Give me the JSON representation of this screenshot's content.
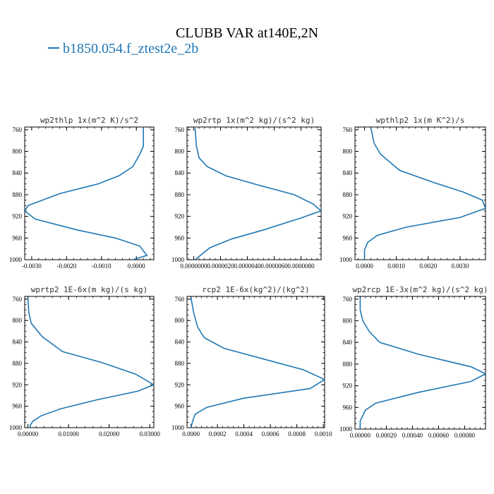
{
  "figure": {
    "title": "CLUBB VAR at140E,2N",
    "legend_label": "b1850.054.f_ztest2e_2b",
    "series_color": "#1f77b4"
  },
  "chart_data": [
    {
      "type": "line",
      "title": "wp2thlp  1x(m^2 K)/s^2",
      "xlim": [
        -0.0032,
        0.0005
      ],
      "ylim": [
        1000,
        755
      ],
      "xticks": [
        -0.003,
        -0.002,
        -0.001,
        0.0
      ],
      "xtick_labels": [
        "-0.0030",
        "-0.0020",
        "-0.0010",
        "0.0000"
      ],
      "yticks": [
        760,
        800,
        840,
        880,
        920,
        960,
        1000
      ],
      "points": [
        [
          0.0002,
          757
        ],
        [
          0.0002,
          790
        ],
        [
          0.0001,
          805
        ],
        [
          -0.0001,
          828
        ],
        [
          -0.0005,
          845
        ],
        [
          -0.0011,
          860
        ],
        [
          -0.0022,
          878
        ],
        [
          -0.0031,
          900
        ],
        [
          -0.0032,
          910
        ],
        [
          -0.0029,
          925
        ],
        [
          -0.0017,
          945
        ],
        [
          -0.0006,
          960
        ],
        [
          0.0001,
          975
        ],
        [
          0.0003,
          992
        ],
        [
          -0.0001,
          1000
        ]
      ]
    },
    {
      "type": "line",
      "title": "wp2rtp  1x(m^2 kg)/(s^2 kg)",
      "xlim": [
        -5e-07,
        9.5e-06
      ],
      "ylim": [
        1000,
        755
      ],
      "xticks": [
        0.0,
        2e-06,
        4e-06,
        6e-06,
        8e-06
      ],
      "xtick_labels": [
        "0.0000000",
        "0.0000020",
        "0.0000040",
        "0.0000060",
        "0.0000080"
      ],
      "yticks": [
        760,
        800,
        840,
        880,
        920,
        960,
        1000
      ],
      "points": [
        [
          1e-07,
          757
        ],
        [
          2e-07,
          790
        ],
        [
          4e-07,
          812
        ],
        [
          1e-06,
          828
        ],
        [
          2.4e-06,
          845
        ],
        [
          4.8e-06,
          862
        ],
        [
          7.5e-06,
          880
        ],
        [
          8.9e-06,
          897
        ],
        [
          9.5e-06,
          910
        ],
        [
          8e-06,
          923
        ],
        [
          5.2e-06,
          945
        ],
        [
          2.8e-06,
          962
        ],
        [
          1.2e-06,
          978
        ],
        [
          5e-07,
          992
        ],
        [
          1e-07,
          1000
        ]
      ]
    },
    {
      "type": "line",
      "title": "wpthlp2  1x(m K^2)/s",
      "xlim": [
        -0.0003,
        0.0038
      ],
      "ylim": [
        1000,
        755
      ],
      "xticks": [
        0.0,
        0.001,
        0.002,
        0.003
      ],
      "xtick_labels": [
        "0.0000",
        "0.0010",
        "0.0020",
        "0.0030"
      ],
      "yticks": [
        760,
        800,
        840,
        880,
        920,
        960,
        1000
      ],
      "points": [
        [
          0.0002,
          757
        ],
        [
          0.0003,
          785
        ],
        [
          0.0005,
          805
        ],
        [
          0.0011,
          835
        ],
        [
          0.0022,
          858
        ],
        [
          0.0031,
          875
        ],
        [
          0.0037,
          890
        ],
        [
          0.0038,
          905
        ],
        [
          0.003,
          922
        ],
        [
          0.0013,
          940
        ],
        [
          0.0004,
          955
        ],
        [
          0.0001,
          968
        ],
        [
          0.0,
          982
        ],
        [
          0.0,
          1000
        ]
      ]
    },
    {
      "type": "line",
      "title": "wprtp2  1E-6x(m kg)/(s kg)",
      "xlim": [
        -0.0008,
        0.031
      ],
      "ylim": [
        1000,
        755
      ],
      "xticks": [
        0.0,
        0.01,
        0.02,
        0.03
      ],
      "xtick_labels": [
        "0.00000",
        "0.01000",
        "0.02000",
        "0.03000"
      ],
      "yticks": [
        760,
        800,
        840,
        880,
        920,
        960,
        1000
      ],
      "points": [
        [
          0.0,
          757
        ],
        [
          0.0002,
          785
        ],
        [
          0.0008,
          805
        ],
        [
          0.0035,
          830
        ],
        [
          0.0085,
          858
        ],
        [
          0.018,
          878
        ],
        [
          0.0265,
          900
        ],
        [
          0.031,
          920
        ],
        [
          0.027,
          932
        ],
        [
          0.017,
          948
        ],
        [
          0.008,
          965
        ],
        [
          0.0032,
          978
        ],
        [
          0.0012,
          988
        ],
        [
          0.0006,
          995
        ],
        [
          0.0005,
          1000
        ]
      ]
    },
    {
      "type": "line",
      "title": "rcp2  1E-6x(kg^2)/(kg^2)",
      "xlim": [
        -3e-05,
        0.00101
      ],
      "ylim": [
        1000,
        755
      ],
      "xticks": [
        0.0,
        0.0002,
        0.0004,
        0.0006,
        0.0008,
        0.001
      ],
      "xtick_labels": [
        "0.0000",
        "0.0002",
        "0.0004",
        "0.0006",
        "0.0008",
        "0.0010"
      ],
      "yticks": [
        760,
        800,
        840,
        880,
        920,
        960,
        1000
      ],
      "points": [
        [
          0.0,
          757
        ],
        [
          2e-05,
          785
        ],
        [
          5e-05,
          812
        ],
        [
          0.0001,
          832
        ],
        [
          0.00025,
          852
        ],
        [
          0.00055,
          872
        ],
        [
          0.00085,
          892
        ],
        [
          0.00101,
          910
        ],
        [
          0.0009,
          927
        ],
        [
          0.0004,
          945
        ],
        [
          0.00012,
          962
        ],
        [
          3e-05,
          975
        ],
        [
          1e-05,
          990
        ],
        [
          0.0,
          1000
        ]
      ]
    },
    {
      "type": "line",
      "title": "wp2rcp  1E-3x(m^2 kg)/(s^2 kg)",
      "xlim": [
        -4e-05,
        0.00096
      ],
      "ylim": [
        1000,
        755
      ],
      "xticks": [
        0.0,
        0.0002,
        0.0004,
        0.0006,
        0.0008
      ],
      "xtick_labels": [
        "0.00000",
        "0.00020",
        "0.00040",
        "0.00060",
        "0.00080"
      ],
      "yticks": [
        760,
        800,
        840,
        880,
        920,
        960,
        1000
      ],
      "points": [
        [
          0.0,
          757
        ],
        [
          0.0,
          780
        ],
        [
          2e-05,
          800
        ],
        [
          7e-05,
          820
        ],
        [
          0.00015,
          840
        ],
        [
          0.00045,
          862
        ],
        [
          0.00085,
          885
        ],
        [
          0.00096,
          898
        ],
        [
          0.00085,
          912
        ],
        [
          0.00045,
          932
        ],
        [
          0.00012,
          952
        ],
        [
          4e-05,
          965
        ],
        [
          0.0,
          985
        ],
        [
          0.0,
          1000
        ]
      ]
    }
  ]
}
